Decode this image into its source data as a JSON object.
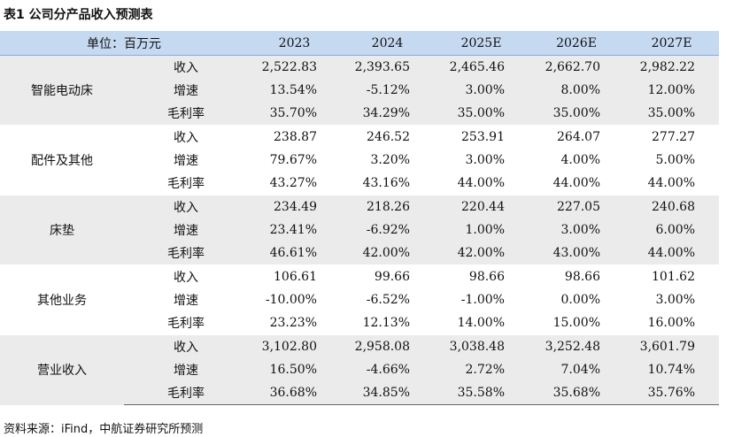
{
  "title": "表1  公司分产品收入预测表",
  "header": {
    "unit": "单位：百万元",
    "years": [
      "2023",
      "2024",
      "2025E",
      "2026E",
      "2027E"
    ]
  },
  "groups": [
    {
      "name": "智能电动床",
      "rows": [
        {
          "metric": "收入",
          "values": [
            "2,522.83",
            "2,393.65",
            "2,465.46",
            "2,662.70",
            "2,982.22"
          ]
        },
        {
          "metric": "增速",
          "values": [
            "13.54%",
            "-5.12%",
            "3.00%",
            "8.00%",
            "12.00%"
          ]
        },
        {
          "metric": "毛利率",
          "values": [
            "35.70%",
            "34.29%",
            "35.00%",
            "35.00%",
            "35.00%"
          ]
        }
      ]
    },
    {
      "name": "配件及其他",
      "rows": [
        {
          "metric": "收入",
          "values": [
            "238.87",
            "246.52",
            "253.91",
            "264.07",
            "277.27"
          ]
        },
        {
          "metric": "增速",
          "values": [
            "79.67%",
            "3.20%",
            "3.00%",
            "4.00%",
            "5.00%"
          ]
        },
        {
          "metric": "毛利率",
          "values": [
            "43.27%",
            "43.16%",
            "44.00%",
            "44.00%",
            "44.00%"
          ]
        }
      ]
    },
    {
      "name": "床垫",
      "rows": [
        {
          "metric": "收入",
          "values": [
            "234.49",
            "218.26",
            "220.44",
            "227.05",
            "240.68"
          ]
        },
        {
          "metric": "增速",
          "values": [
            "23.41%",
            "-6.92%",
            "1.00%",
            "3.00%",
            "6.00%"
          ]
        },
        {
          "metric": "毛利率",
          "values": [
            "46.61%",
            "42.00%",
            "42.00%",
            "43.00%",
            "44.00%"
          ]
        }
      ]
    },
    {
      "name": "其他业务",
      "rows": [
        {
          "metric": "收入",
          "values": [
            "106.61",
            "99.66",
            "98.66",
            "98.66",
            "101.62"
          ]
        },
        {
          "metric": "增速",
          "values": [
            "-10.00%",
            "-6.52%",
            "-1.00%",
            "0.00%",
            "3.00%"
          ]
        },
        {
          "metric": "毛利率",
          "values": [
            "23.23%",
            "12.13%",
            "14.00%",
            "15.00%",
            "16.00%"
          ]
        }
      ]
    },
    {
      "name": "营业收入",
      "rows": [
        {
          "metric": "收入",
          "values": [
            "3,102.80",
            "2,958.08",
            "3,038.48",
            "3,252.48",
            "3,601.79"
          ]
        },
        {
          "metric": "增速",
          "values": [
            "16.50%",
            "-4.66%",
            "2.72%",
            "7.04%",
            "10.74%"
          ]
        },
        {
          "metric": "毛利率",
          "values": [
            "36.68%",
            "34.85%",
            "35.58%",
            "35.68%",
            "35.76%"
          ]
        }
      ]
    }
  ],
  "source": "资料来源：iFind，中航证券研究所预测"
}
